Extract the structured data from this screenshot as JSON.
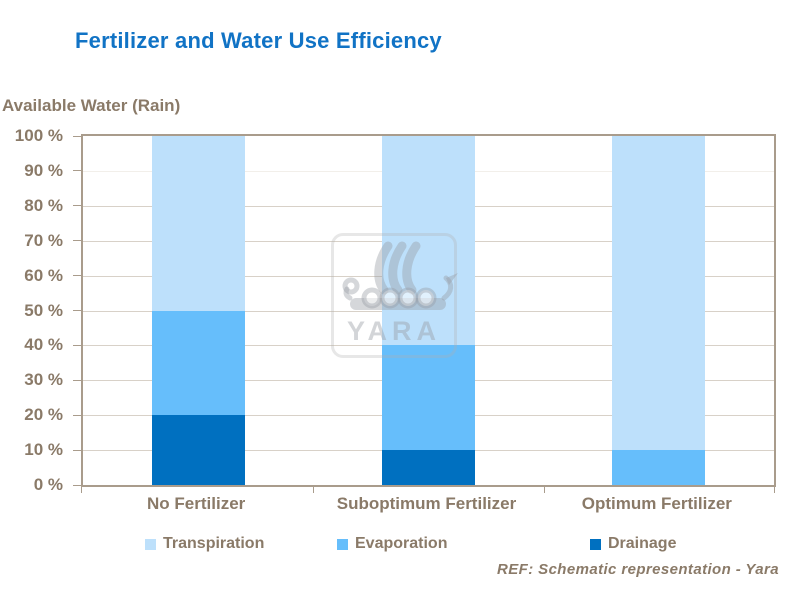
{
  "chart_data": {
    "type": "bar",
    "stacked": true,
    "title": "Fertilizer and Water Use Efficiency",
    "categories": [
      "No Fertilizer",
      "Suboptimum Fertilizer",
      "Optimum Fertilizer"
    ],
    "series": [
      {
        "name": "Transpiration",
        "color": "#BDE0FB",
        "values": [
          50,
          60,
          90
        ]
      },
      {
        "name": "Evaporation",
        "color": "#66BEFB",
        "values": [
          30,
          30,
          10
        ]
      },
      {
        "name": "Drainage",
        "color": "#0070C0",
        "values": [
          20,
          10,
          0
        ]
      }
    ],
    "ylabel": "Available Water (Rain)",
    "ylim": [
      0,
      100
    ],
    "ytick_step": 10,
    "ytick_suffix": " %",
    "legend_position": "bottom",
    "grid": true
  },
  "footer": {
    "ref_text": "REF: Schematic representation - Yara"
  },
  "watermark": {
    "text": "YARA",
    "icon": "viking-ship-icon"
  },
  "theme": {
    "title_color": "#1173C5",
    "text_color": "#8A7A68",
    "axis_color": "#A99C8C",
    "grid_color": "#D8D1C8",
    "background": "#FFFFFF"
  }
}
